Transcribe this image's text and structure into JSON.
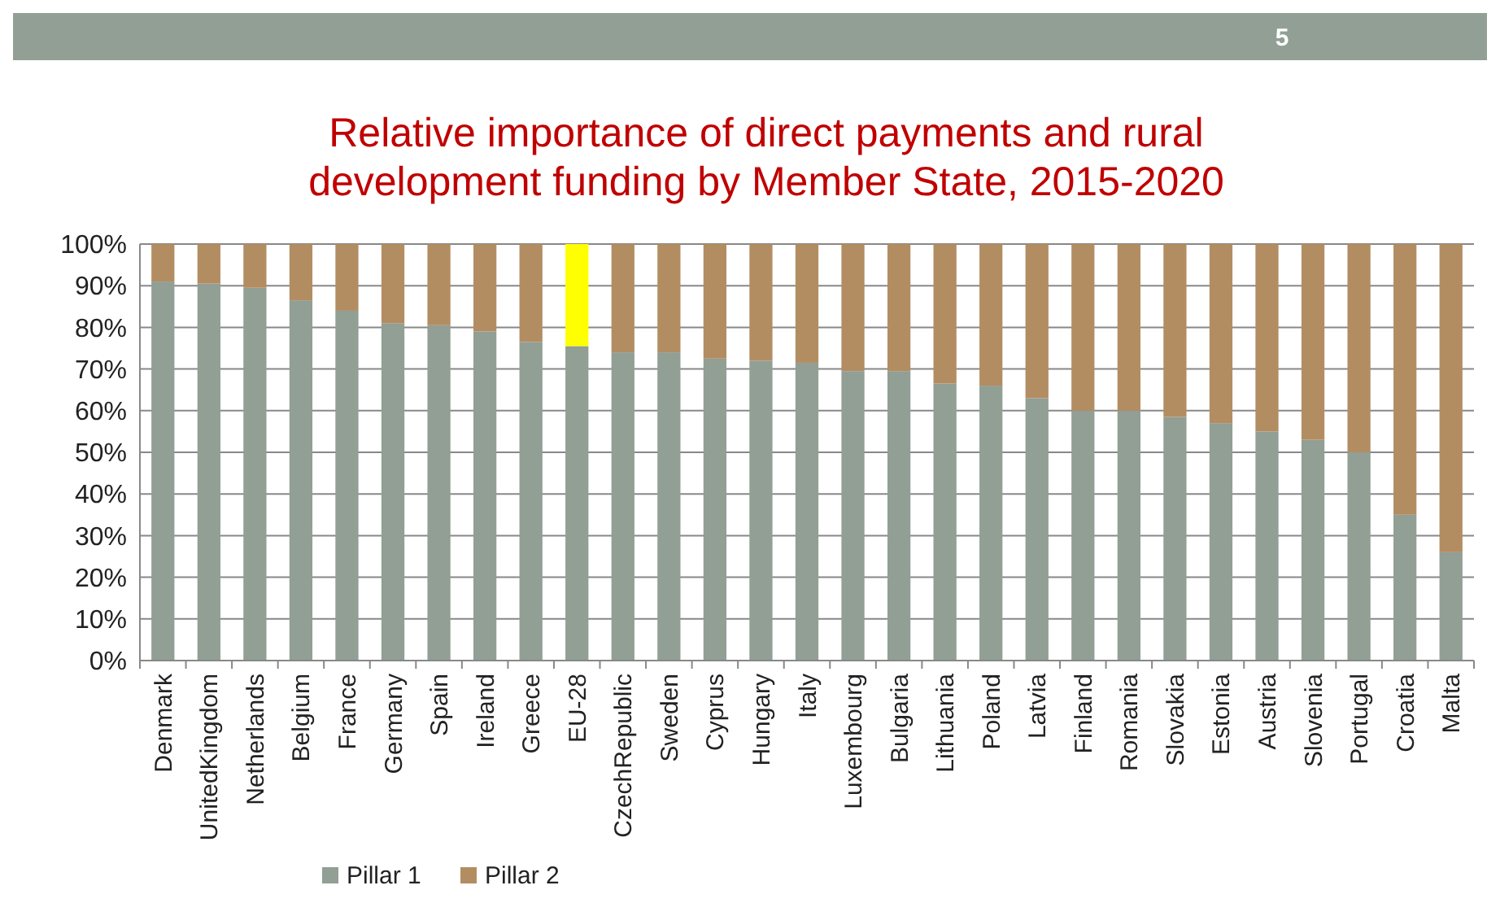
{
  "chart_data": {
    "type": "bar",
    "title": "Relative importance of direct payments and rural development funding by Member State, 2015-2020",
    "annotations": [
      "5"
    ],
    "categories": [
      "Denmark",
      "UnitedKingdom",
      "Netherlands",
      "Belgium",
      "France",
      "Germany",
      "Spain",
      "Ireland",
      "Greece",
      "EU-28",
      "CzechRepublic",
      "Sweden",
      "Cyprus",
      "Hungary",
      "Italy",
      "Luxembourg",
      "Bulgaria",
      "Lithuania",
      "Poland",
      "Latvia",
      "Finland",
      "Romania",
      "Slovakia",
      "Estonia",
      "Austria",
      "Slovenia",
      "Portugal",
      "Croatia",
      "Malta"
    ],
    "stacked": true,
    "ylim": [
      0,
      100
    ],
    "yticks": [
      {
        "value": 0,
        "label": "0%"
      },
      {
        "value": 10,
        "label": "10%"
      },
      {
        "value": 20,
        "label": "20%"
      },
      {
        "value": 30,
        "label": "30%"
      },
      {
        "value": 40,
        "label": "40%"
      },
      {
        "value": 50,
        "label": "50%"
      },
      {
        "value": 60,
        "label": "60%"
      },
      {
        "value": 70,
        "label": "70%"
      },
      {
        "value": 80,
        "label": "80%"
      },
      {
        "value": 90,
        "label": "90%"
      },
      {
        "value": 100,
        "label": "100%"
      }
    ],
    "grid": "y",
    "legend": "bottom left",
    "series": [
      {
        "name": "Pillar 1",
        "color": "#919f95",
        "values": [
          91,
          90.5,
          89.5,
          86.5,
          84,
          81,
          80.5,
          79,
          76.5,
          75.5,
          74,
          74,
          72.5,
          72,
          71.5,
          69.5,
          69.5,
          66.5,
          66,
          63,
          60,
          60,
          58.5,
          57,
          55,
          53,
          50,
          35,
          26
        ]
      },
      {
        "name": "Pillar 2",
        "color": "#b38d62",
        "colors": [
          "#b38d62",
          "#b38d62",
          "#b38d62",
          "#b38d62",
          "#b38d62",
          "#b38d62",
          "#b38d62",
          "#b38d62",
          "#b38d62",
          "#ffff00",
          "#b38d62",
          "#b38d62",
          "#b38d62",
          "#b38d62",
          "#b38d62",
          "#b38d62",
          "#b38d62",
          "#b38d62",
          "#b38d62",
          "#b38d62",
          "#b38d62",
          "#b38d62",
          "#b38d62",
          "#b38d62",
          "#b38d62",
          "#b38d62",
          "#b38d62",
          "#b38d62",
          "#b38d62"
        ],
        "values": [
          9,
          9.5,
          10.5,
          13.5,
          16,
          19,
          19.5,
          21,
          23.5,
          24.5,
          26,
          26,
          27.5,
          28,
          28.5,
          30.5,
          30.5,
          33.5,
          34,
          37,
          40,
          40,
          41.5,
          43,
          45,
          47,
          50,
          65,
          74
        ]
      }
    ]
  }
}
